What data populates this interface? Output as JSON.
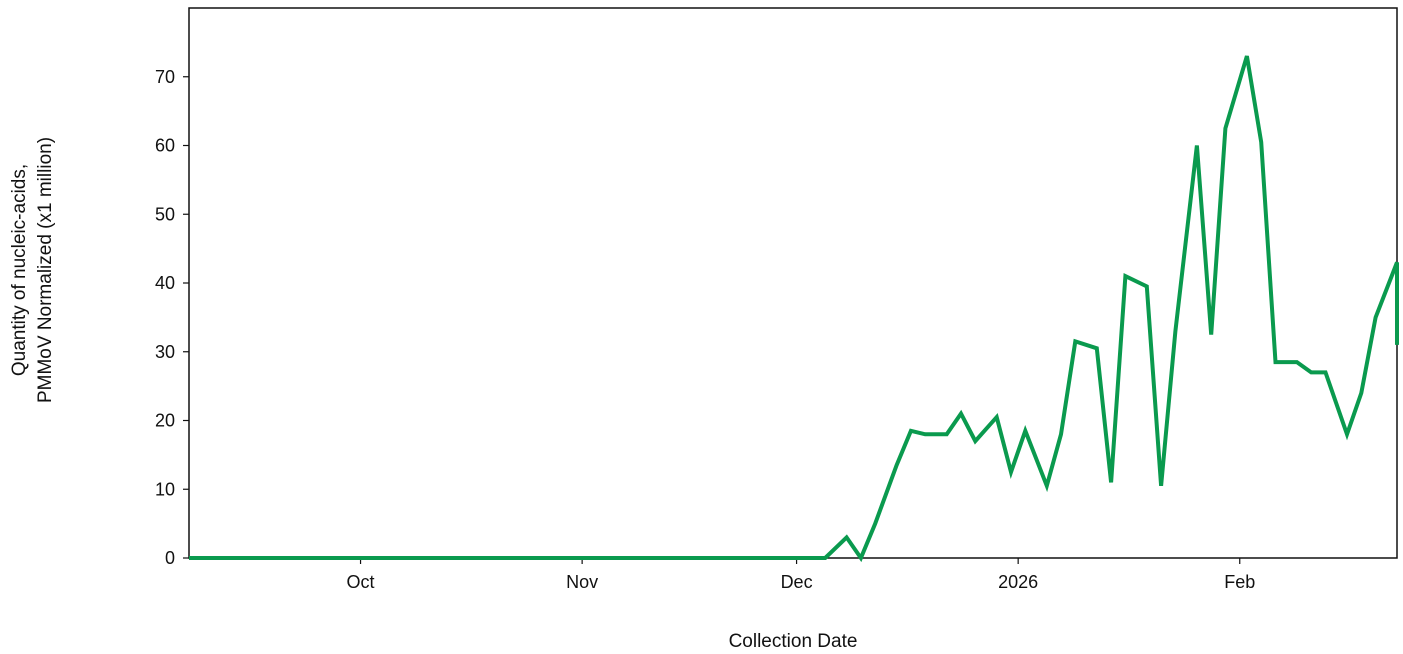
{
  "chart_data": {
    "type": "line",
    "xlabel": "Collection Date",
    "ylabel_lines": [
      "Quantity of nucleic-acids,",
      "PMMoV Normalized (x1 million)"
    ],
    "ylim": [
      0,
      80
    ],
    "y_ticks": [
      0,
      10,
      20,
      30,
      40,
      50,
      60,
      70
    ],
    "x_range": [
      "2025-09-07",
      "2026-02-23"
    ],
    "x_ticks": [
      {
        "date": "2025-10-01",
        "label": "Oct"
      },
      {
        "date": "2025-11-01",
        "label": "Nov"
      },
      {
        "date": "2025-12-01",
        "label": "Dec"
      },
      {
        "date": "2026-01-01",
        "label": "2026"
      },
      {
        "date": "2026-02-01",
        "label": "Feb"
      }
    ],
    "grid": false,
    "series": [
      {
        "color": "#0a9a4e",
        "points": [
          [
            "2025-09-07",
            0
          ],
          [
            "2025-12-05",
            0
          ],
          [
            "2025-12-08",
            3
          ],
          [
            "2025-12-10",
            0
          ],
          [
            "2025-12-12",
            5
          ],
          [
            "2025-12-15",
            13.5
          ],
          [
            "2025-12-17",
            18.5
          ],
          [
            "2025-12-19",
            18
          ],
          [
            "2025-12-22",
            18
          ],
          [
            "2025-12-24",
            21
          ],
          [
            "2025-12-26",
            17
          ],
          [
            "2025-12-29",
            20.5
          ],
          [
            "2025-12-31",
            12.5
          ],
          [
            "2026-01-02",
            18.5
          ],
          [
            "2026-01-05",
            10.5
          ],
          [
            "2026-01-07",
            18
          ],
          [
            "2026-01-09",
            31.5
          ],
          [
            "2026-01-12",
            30.5
          ],
          [
            "2026-01-14",
            11
          ],
          [
            "2026-01-16",
            41
          ],
          [
            "2026-01-19",
            39.5
          ],
          [
            "2026-01-21",
            10.5
          ],
          [
            "2026-01-23",
            33
          ],
          [
            "2026-01-26",
            60
          ],
          [
            "2026-01-28",
            32.5
          ],
          [
            "2026-01-30",
            62.5
          ],
          [
            "2026-02-02",
            73
          ],
          [
            "2026-02-04",
            60.5
          ],
          [
            "2026-02-06",
            28.5
          ],
          [
            "2026-02-09",
            28.5
          ],
          [
            "2026-02-11",
            27
          ],
          [
            "2026-02-13",
            27
          ],
          [
            "2026-02-16",
            18
          ],
          [
            "2026-02-18",
            24
          ],
          [
            "2026-02-20",
            35
          ],
          [
            "2026-02-23",
            43
          ],
          [
            "2026-02-24",
            31
          ]
        ]
      }
    ]
  }
}
